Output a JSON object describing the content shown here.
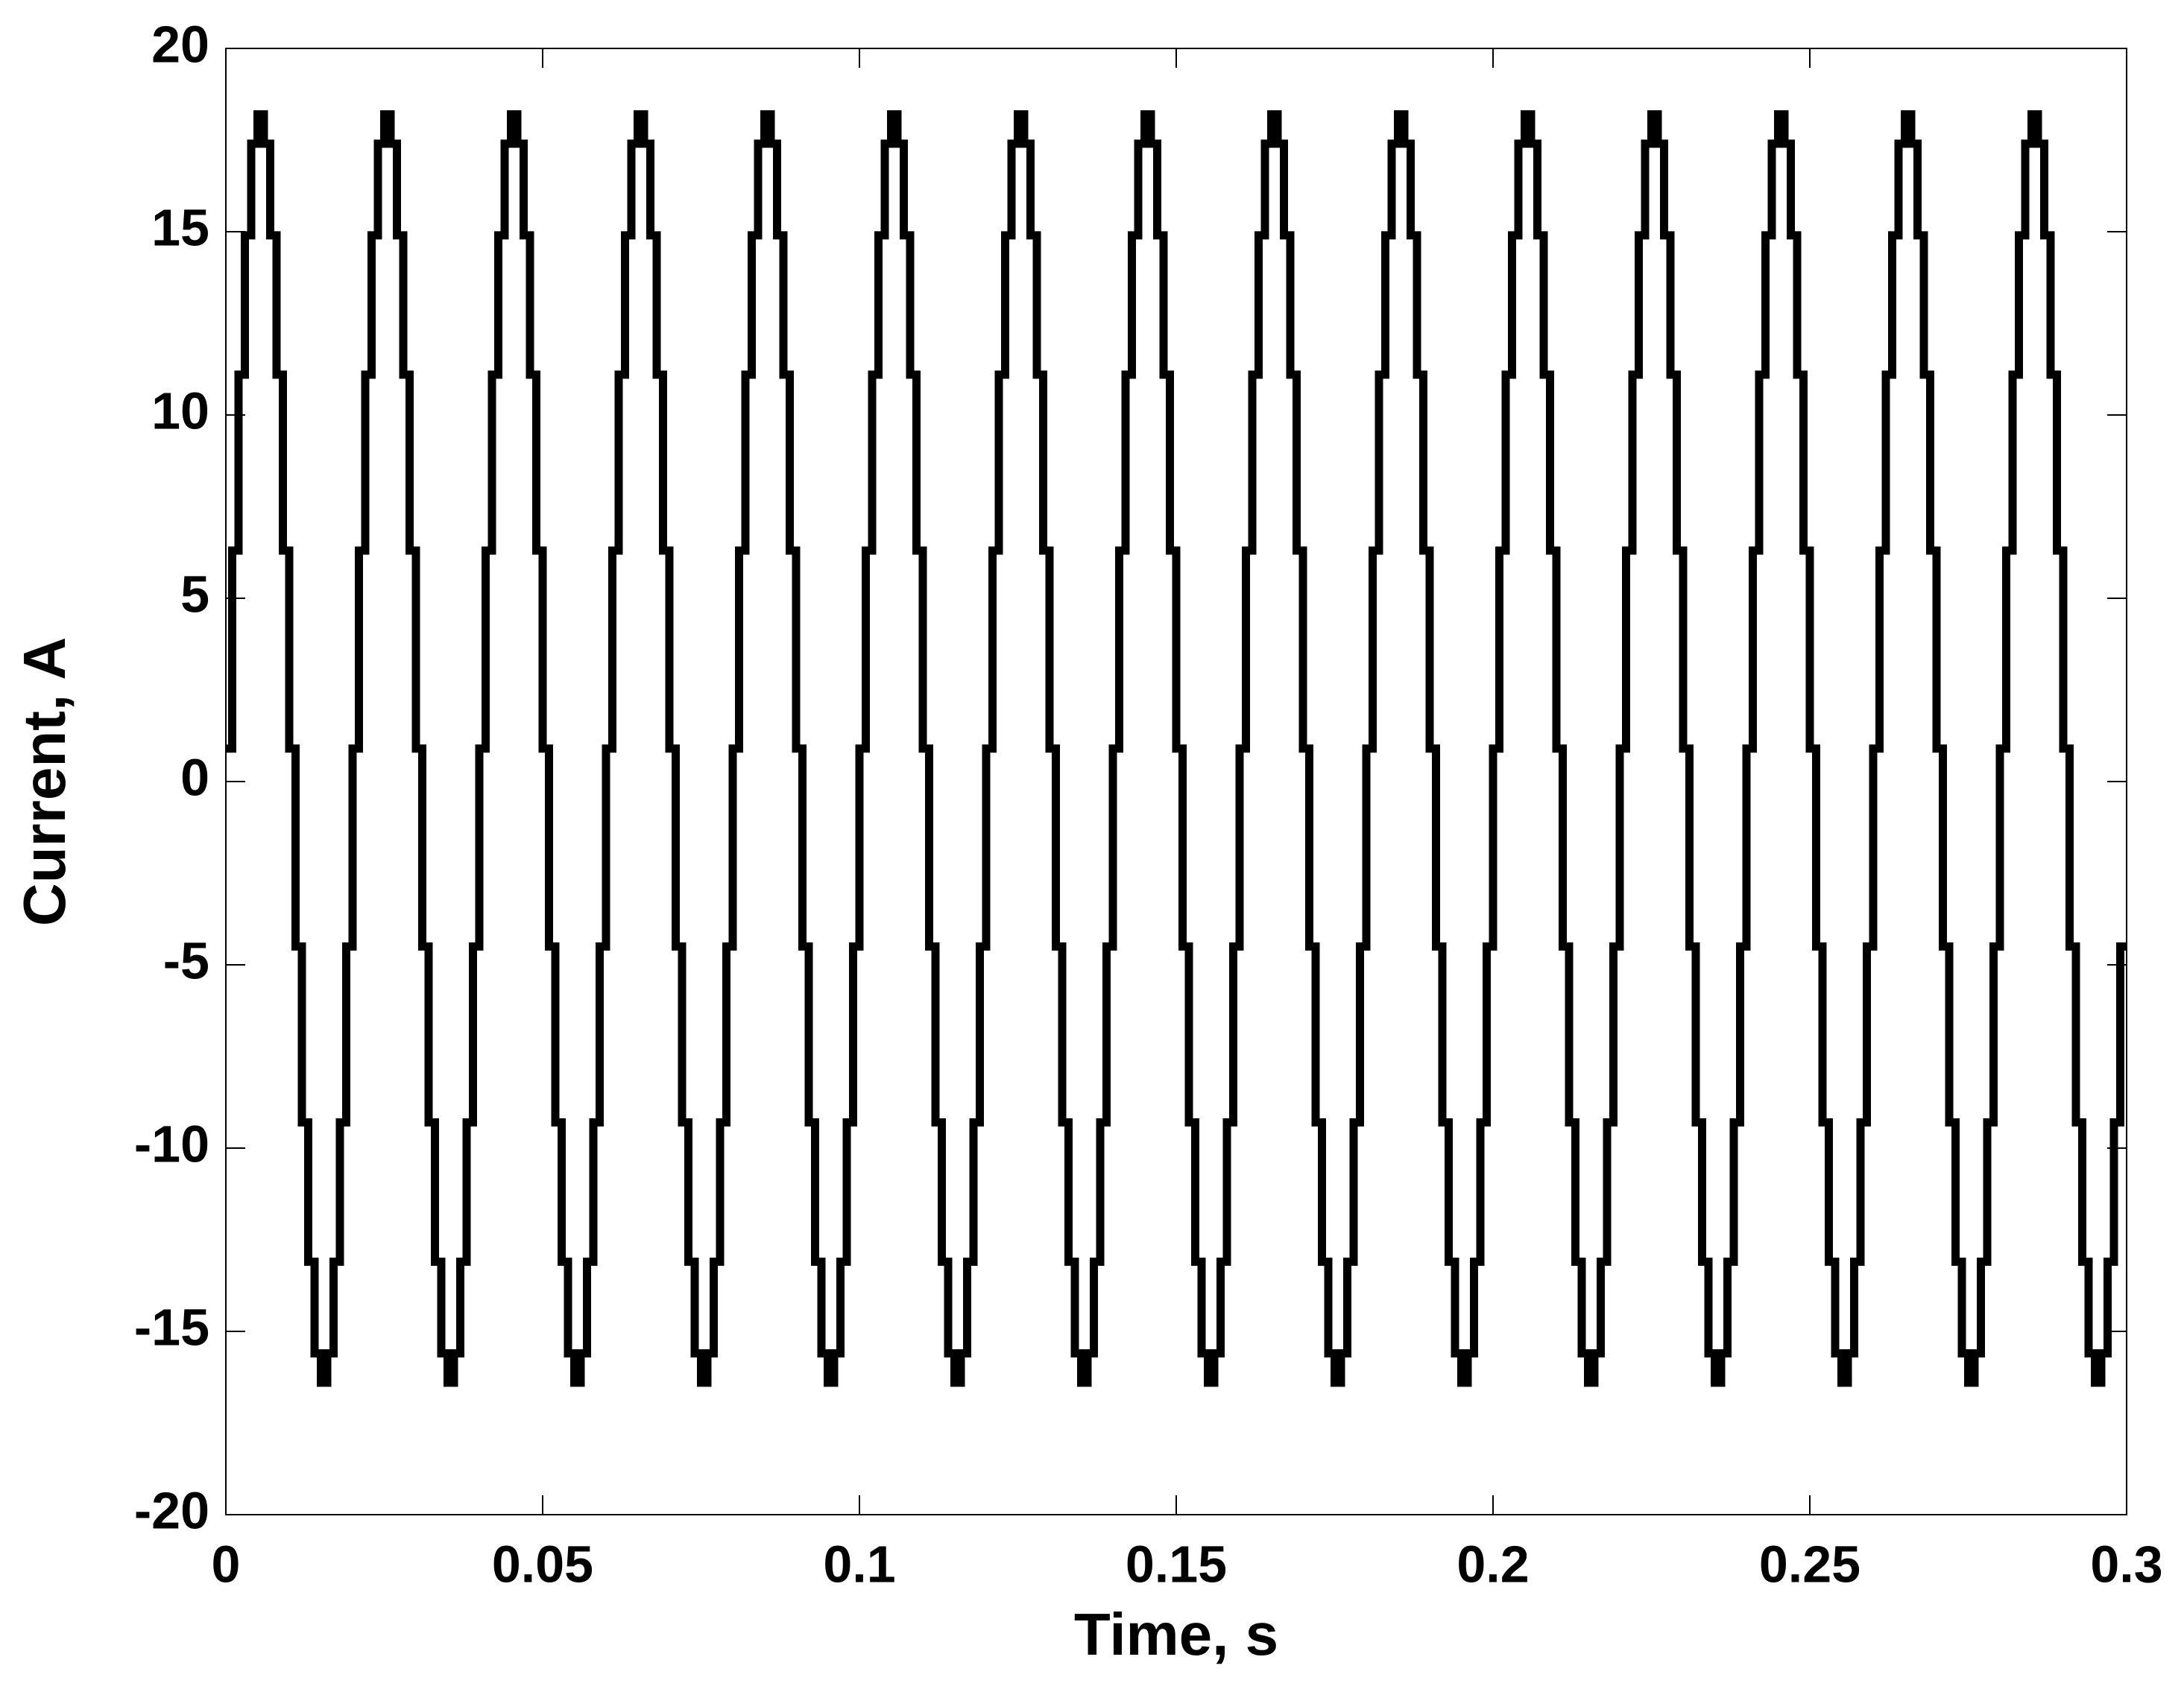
{
  "chart_data": {
    "type": "line",
    "step": "post",
    "xlabel": "Time, s",
    "ylabel": "Current, A",
    "xlim": [
      0,
      0.3
    ],
    "xticks": [
      0,
      0.05,
      0.1,
      0.15,
      0.2,
      0.25,
      0.3
    ],
    "ylim": [
      -20,
      20
    ],
    "yticks": [
      -20,
      -15,
      -10,
      -5,
      0,
      5,
      10,
      15,
      20
    ],
    "grid": false,
    "x": [
      0,
      0.001,
      0.002,
      0.003,
      0.004,
      0.005,
      0.006,
      0.007,
      0.008,
      0.009,
      0.01,
      0.011,
      0.012,
      0.013,
      0.014,
      0.015,
      0.016,
      0.017,
      0.018,
      0.019,
      0.02,
      0.021,
      0.022,
      0.023,
      0.024,
      0.025,
      0.026,
      0.027,
      0.028,
      0.029,
      0.03,
      0.031,
      0.032,
      0.033,
      0.034,
      0.035,
      0.036,
      0.037,
      0.038,
      0.039,
      0.04,
      0.041,
      0.042,
      0.043,
      0.044,
      0.045,
      0.046,
      0.047,
      0.048,
      0.049,
      0.05,
      0.051,
      0.052,
      0.053,
      0.054,
      0.055,
      0.056,
      0.057,
      0.058,
      0.059,
      0.06,
      0.061,
      0.062,
      0.063,
      0.064,
      0.065,
      0.066,
      0.067,
      0.068,
      0.069,
      0.07,
      0.071,
      0.072,
      0.073,
      0.074,
      0.075,
      0.076,
      0.077,
      0.078,
      0.079,
      0.08,
      0.081,
      0.082,
      0.083,
      0.084,
      0.085,
      0.086,
      0.087,
      0.088,
      0.089,
      0.09,
      0.091,
      0.092,
      0.093,
      0.094,
      0.095,
      0.096,
      0.097,
      0.098,
      0.099,
      0.1,
      0.101,
      0.102,
      0.103,
      0.104,
      0.105,
      0.106,
      0.107,
      0.108,
      0.109,
      0.11,
      0.111,
      0.112,
      0.113,
      0.114,
      0.115,
      0.116,
      0.117,
      0.118,
      0.119,
      0.12,
      0.121,
      0.122,
      0.123,
      0.124,
      0.125,
      0.126,
      0.127,
      0.128,
      0.129,
      0.13,
      0.131,
      0.132,
      0.133,
      0.134,
      0.135,
      0.136,
      0.137,
      0.138,
      0.139,
      0.14,
      0.141,
      0.142,
      0.143,
      0.144,
      0.145,
      0.146,
      0.147,
      0.148,
      0.149,
      0.15,
      0.151,
      0.152,
      0.153,
      0.154,
      0.155,
      0.156,
      0.157,
      0.158,
      0.159,
      0.16,
      0.161,
      0.162,
      0.163,
      0.164,
      0.165,
      0.166,
      0.167,
      0.168,
      0.169,
      0.17,
      0.171,
      0.172,
      0.173,
      0.174,
      0.175,
      0.176,
      0.177,
      0.178,
      0.179,
      0.18,
      0.181,
      0.182,
      0.183,
      0.184,
      0.185,
      0.186,
      0.187,
      0.188,
      0.189,
      0.19,
      0.191,
      0.192,
      0.193,
      0.194,
      0.195,
      0.196,
      0.197,
      0.198,
      0.199,
      0.2,
      0.201,
      0.202,
      0.203,
      0.204,
      0.205,
      0.206,
      0.207,
      0.208,
      0.209,
      0.21,
      0.211,
      0.212,
      0.213,
      0.214,
      0.215,
      0.216,
      0.217,
      0.218,
      0.219,
      0.22,
      0.221,
      0.222,
      0.223,
      0.224,
      0.225,
      0.226,
      0.227,
      0.228,
      0.229,
      0.23,
      0.231,
      0.232,
      0.233,
      0.234,
      0.235,
      0.236,
      0.237,
      0.238,
      0.239,
      0.24,
      0.241,
      0.242,
      0.243,
      0.244,
      0.245,
      0.246,
      0.247,
      0.248,
      0.249,
      0.25,
      0.251,
      0.252,
      0.253,
      0.254,
      0.255,
      0.256,
      0.257,
      0.258,
      0.259,
      0.26,
      0.261,
      0.262,
      0.263,
      0.264,
      0.265,
      0.266,
      0.267,
      0.268,
      0.269,
      0.27,
      0.271,
      0.272,
      0.273,
      0.274,
      0.275,
      0.276,
      0.277,
      0.278,
      0.279,
      0.28,
      0.281,
      0.282,
      0.283,
      0.284,
      0.285,
      0.286,
      0.287,
      0.288,
      0.289,
      0.29,
      0.291,
      0.292,
      0.293,
      0.294,
      0.295,
      0.296,
      0.297,
      0.298,
      0.299
    ],
    "series": [
      {
        "color": "#000000",
        "values": [
          0.9,
          6.3,
          11.1,
          14.9,
          17.4,
          18.2,
          17.4,
          14.9,
          11.1,
          6.3,
          0.9,
          -4.5,
          -9.3,
          -13.1,
          -15.6,
          -16.4,
          -15.6,
          -13.1,
          -9.3,
          -4.5,
          0.9,
          6.3,
          11.1,
          14.9,
          17.4,
          18.2,
          17.4,
          14.9,
          11.1,
          6.3,
          0.9,
          -4.5,
          -9.3,
          -13.1,
          -15.6,
          -16.4,
          -15.6,
          -13.1,
          -9.3,
          -4.5,
          0.9,
          6.3,
          11.1,
          14.9,
          17.4,
          18.2,
          17.4,
          14.9,
          11.1,
          6.3,
          0.9,
          -4.5,
          -9.3,
          -13.1,
          -15.6,
          -16.4,
          -15.6,
          -13.1,
          -9.3,
          -4.5,
          0.9,
          6.3,
          11.1,
          14.9,
          17.4,
          18.2,
          17.4,
          14.9,
          11.1,
          6.3,
          0.9,
          -4.5,
          -9.3,
          -13.1,
          -15.6,
          -16.4,
          -15.6,
          -13.1,
          -9.3,
          -4.5,
          0.9,
          6.3,
          11.1,
          14.9,
          17.4,
          18.2,
          17.4,
          14.9,
          11.1,
          6.3,
          0.9,
          -4.5,
          -9.3,
          -13.1,
          -15.6,
          -16.4,
          -15.6,
          -13.1,
          -9.3,
          -4.5,
          0.9,
          6.3,
          11.1,
          14.9,
          17.4,
          18.2,
          17.4,
          14.9,
          11.1,
          6.3,
          0.9,
          -4.5,
          -9.3,
          -13.1,
          -15.6,
          -16.4,
          -15.6,
          -13.1,
          -9.3,
          -4.5,
          0.9,
          6.3,
          11.1,
          14.9,
          17.4,
          18.2,
          17.4,
          14.9,
          11.1,
          6.3,
          0.9,
          -4.5,
          -9.3,
          -13.1,
          -15.6,
          -16.4,
          -15.6,
          -13.1,
          -9.3,
          -4.5,
          0.9,
          6.3,
          11.1,
          14.9,
          17.4,
          18.2,
          17.4,
          14.9,
          11.1,
          6.3,
          0.9,
          -4.5,
          -9.3,
          -13.1,
          -15.6,
          -16.4,
          -15.6,
          -13.1,
          -9.3,
          -4.5,
          0.9,
          6.3,
          11.1,
          14.9,
          17.4,
          18.2,
          17.4,
          14.9,
          11.1,
          6.3,
          0.9,
          -4.5,
          -9.3,
          -13.1,
          -15.6,
          -16.4,
          -15.6,
          -13.1,
          -9.3,
          -4.5,
          0.9,
          6.3,
          11.1,
          14.9,
          17.4,
          18.2,
          17.4,
          14.9,
          11.1,
          6.3,
          0.9,
          -4.5,
          -9.3,
          -13.1,
          -15.6,
          -16.4,
          -15.6,
          -13.1,
          -9.3,
          -4.5,
          0.9,
          6.3,
          11.1,
          14.9,
          17.4,
          18.2,
          17.4,
          14.9,
          11.1,
          6.3,
          0.9,
          -4.5,
          -9.3,
          -13.1,
          -15.6,
          -16.4,
          -15.6,
          -13.1,
          -9.3,
          -4.5,
          0.9,
          6.3,
          11.1,
          14.9,
          17.4,
          18.2,
          17.4,
          14.9,
          11.1,
          6.3,
          0.9,
          -4.5,
          -9.3,
          -13.1,
          -15.6,
          -16.4,
          -15.6,
          -13.1,
          -9.3,
          -4.5,
          0.9,
          6.3,
          11.1,
          14.9,
          17.4,
          18.2,
          17.4,
          14.9,
          11.1,
          6.3,
          0.9,
          -4.5,
          -9.3,
          -13.1,
          -15.6,
          -16.4,
          -15.6,
          -13.1,
          -9.3,
          -4.5,
          0.9,
          6.3,
          11.1,
          14.9,
          17.4,
          18.2,
          17.4,
          14.9,
          11.1,
          6.3,
          0.9,
          -4.5,
          -9.3,
          -13.1,
          -15.6,
          -16.4,
          -15.6,
          -13.1,
          -9.3,
          -4.5,
          0.9,
          6.3,
          11.1,
          14.9,
          17.4,
          18.2,
          17.4,
          14.9,
          11.1,
          6.3,
          0.9,
          -4.5,
          -9.3,
          -13.1,
          -15.6,
          -16.4,
          -15.6,
          -13.1,
          -9.3,
          -4.5
        ]
      }
    ]
  }
}
